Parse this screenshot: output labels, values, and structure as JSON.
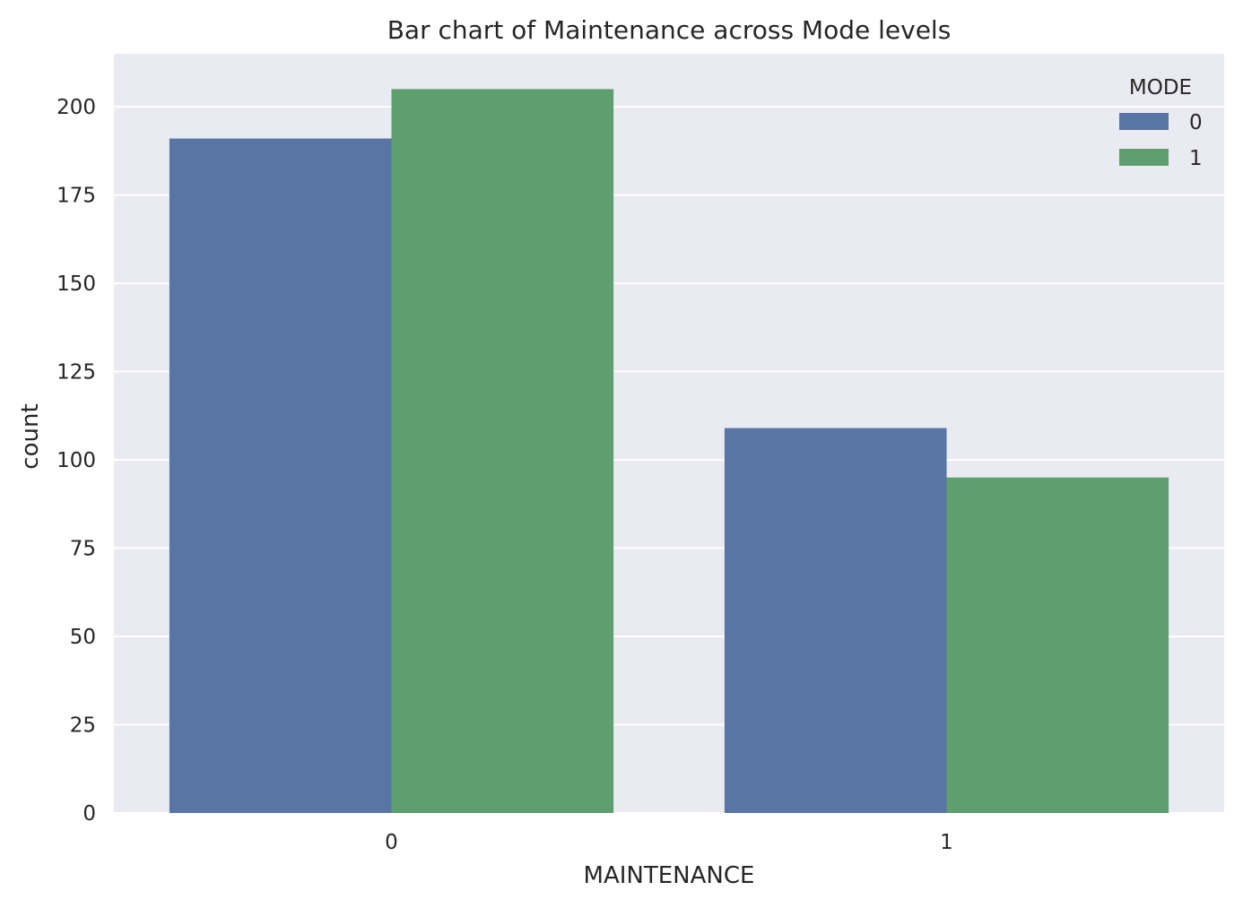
{
  "chart_data": {
    "type": "bar",
    "title": "Bar chart of Maintenance across Mode levels",
    "xlabel": "MAINTENANCE",
    "ylabel": "count",
    "categories": [
      "0",
      "1"
    ],
    "series": [
      {
        "name": "0",
        "values": [
          191,
          109
        ],
        "color": "#5875a4"
      },
      {
        "name": "1",
        "values": [
          205,
          95
        ],
        "color": "#5f9e6e"
      }
    ],
    "ylim": [
      0,
      215
    ],
    "yticks": [
      0,
      25,
      50,
      75,
      100,
      125,
      150,
      175,
      200
    ],
    "ytick_labels": [
      "0",
      "25",
      "50",
      "75",
      "100",
      "125",
      "150",
      "175",
      "200"
    ],
    "grid": true,
    "legend": {
      "title": "MODE",
      "placement": "top-right"
    },
    "background_color": "#eaeaf2",
    "grid_color": "#ffffff"
  }
}
